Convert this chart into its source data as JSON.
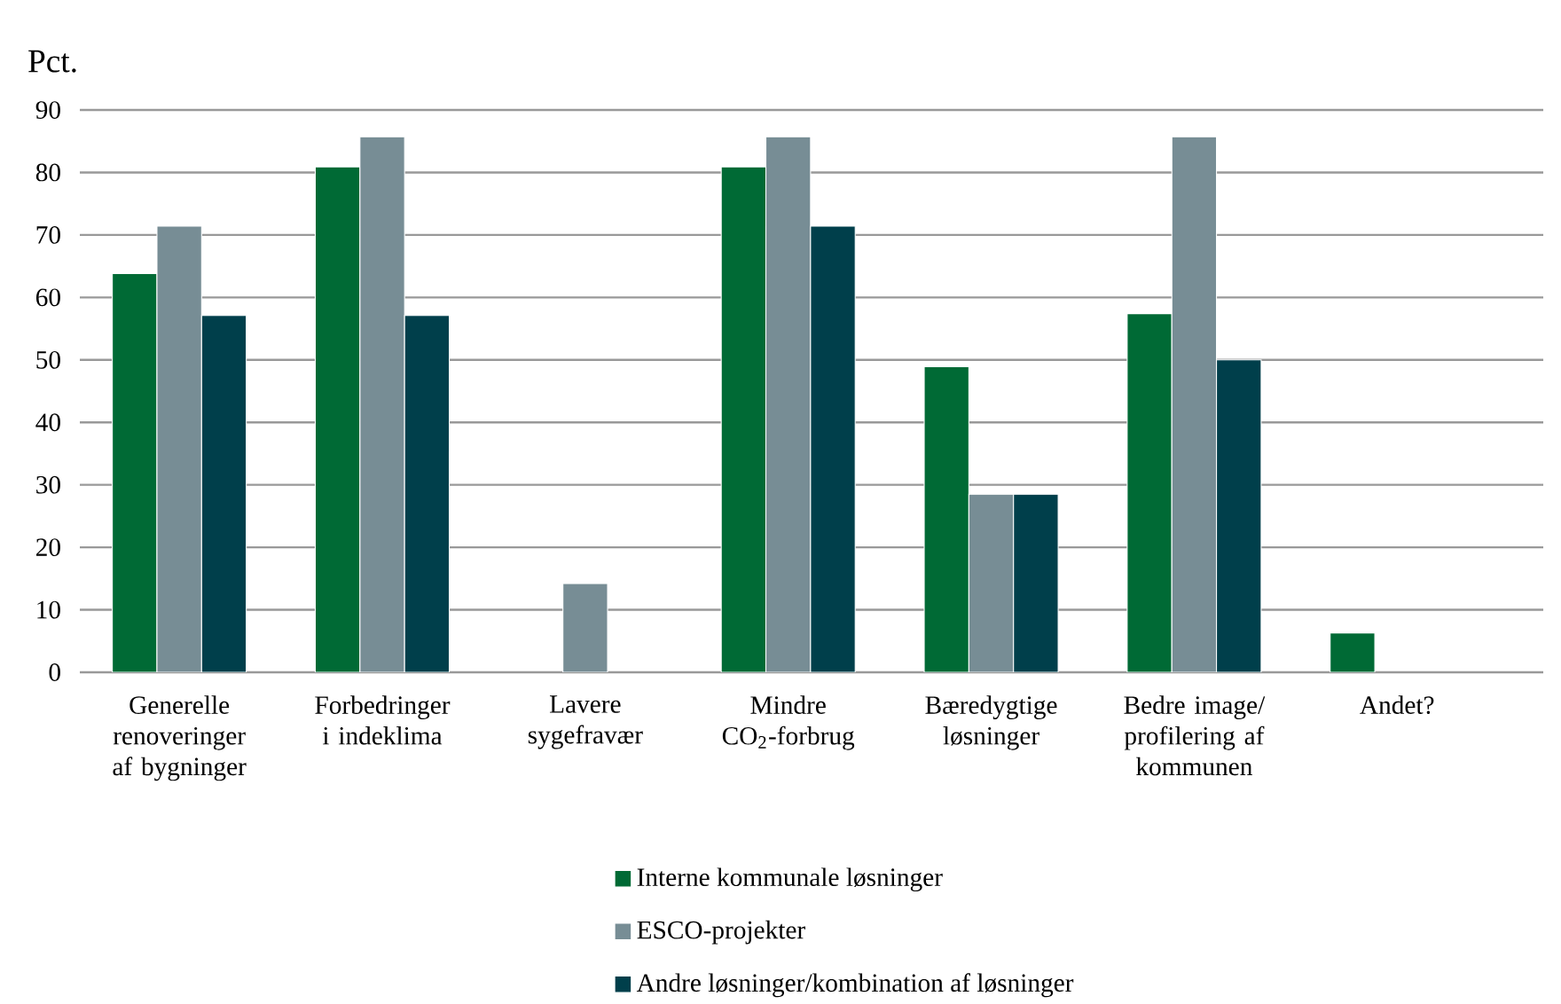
{
  "chart_data": {
    "type": "bar",
    "ylabel": "Pct.",
    "categories": [
      "Generelle renoveringer af bygninger",
      "Forbedringer i indeklima",
      "Lavere sygefravær",
      "Mindre CO$_{2}$-forbrug",
      "Bæredygtige løsninger",
      "Bedre image/ profilering af kommunen",
      "Andet?"
    ],
    "series": [
      {
        "name": "Interne kommunale løsninger",
        "color": "#006a35",
        "values": [
          63.8,
          80.9,
          null,
          80.9,
          48.9,
          57.4,
          6.3
        ]
      },
      {
        "name": "ESCO-projekter",
        "color": "#778d95",
        "values": [
          71.4,
          85.7,
          14.2,
          85.7,
          28.5,
          85.7,
          null
        ]
      },
      {
        "name": "Andre løsninger/kombination af løsninger",
        "color": "#003f4b",
        "values": [
          57.1,
          57.1,
          null,
          71.4,
          28.5,
          50.0,
          null
        ]
      }
    ],
    "ylim": [
      0,
      90
    ],
    "yticks": [
      0,
      10,
      20,
      30,
      40,
      50,
      60,
      70,
      80,
      90
    ],
    "grid": "y",
    "legend": "bottom"
  }
}
